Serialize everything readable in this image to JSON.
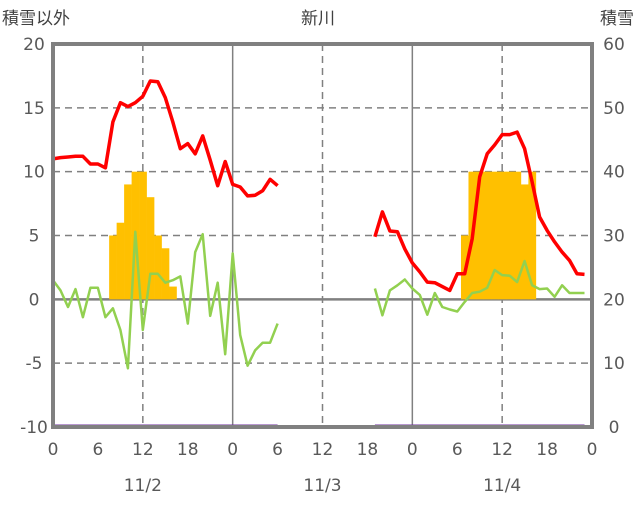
{
  "chart_data": {
    "type": "line",
    "title": "新川",
    "ylabel_left": "積雪以外",
    "ylabel_right": "積雪",
    "ylim_left": [
      -10,
      20
    ],
    "ylim_right": [
      0,
      60
    ],
    "yticks_left": [
      "20",
      "15",
      "10",
      "5",
      "0",
      "-5",
      "-10"
    ],
    "yticks_right": [
      "60",
      "50",
      "40",
      "30",
      "20",
      "10",
      "0"
    ],
    "xlim_hours": [
      0,
      72
    ],
    "xtick_labels": [
      "0",
      "6",
      "12",
      "18",
      "0",
      "6",
      "12",
      "18",
      "0",
      "6",
      "12",
      "18",
      "0"
    ],
    "date_labels": [
      "11/2",
      "11/3",
      "11/4"
    ],
    "grid": true,
    "colors": {
      "red": "#ff0000",
      "green": "#92d050",
      "bars": "#ffc000",
      "snow": "#7030a0",
      "axis": "#808080"
    },
    "series": [
      {
        "name": "red-line",
        "axis": "left",
        "x_start": 0,
        "values": [
          11.0,
          11.1,
          11.15,
          11.2,
          11.2,
          10.6,
          10.6,
          10.3,
          13.9,
          15.4,
          15.1,
          15.4,
          15.9,
          17.1,
          17.05,
          15.8,
          13.9,
          11.8,
          12.2,
          11.4,
          12.8,
          10.9,
          8.9,
          10.8,
          9.0,
          8.8,
          8.1,
          8.15,
          8.5,
          9.4,
          8.9
        ]
      },
      {
        "name": "red-line",
        "axis": "left",
        "x_start": 43,
        "values": [
          4.9,
          6.85,
          5.35,
          5.3,
          3.95,
          2.85,
          2.15,
          1.35,
          1.3,
          1.0,
          0.7,
          2.0,
          2.0,
          4.75,
          9.6,
          11.4,
          12.1,
          12.9,
          12.9,
          13.1,
          11.8,
          9.2,
          6.45,
          5.4,
          4.5,
          3.7,
          3.05,
          2.0,
          1.95
        ]
      },
      {
        "name": "green-line",
        "axis": "left",
        "x_start": 0,
        "values": [
          1.5,
          0.7,
          -0.6,
          0.8,
          -1.4,
          0.9,
          0.9,
          -1.4,
          -0.7,
          -2.4,
          -5.4,
          5.3,
          -2.4,
          2.0,
          2.0,
          1.3,
          1.5,
          1.8,
          -1.9,
          3.7,
          5.1,
          -1.3,
          1.3,
          -4.3,
          3.6,
          -2.8,
          -5.2,
          -4.0,
          -3.4,
          -3.4,
          -1.9
        ]
      },
      {
        "name": "green-line",
        "axis": "left",
        "x_start": 43,
        "values": [
          0.85,
          -1.25,
          0.7,
          1.1,
          1.55,
          0.85,
          0.35,
          -1.2,
          0.5,
          -0.6,
          -0.8,
          -0.95,
          -0.2,
          0.5,
          0.6,
          0.9,
          2.3,
          1.9,
          1.85,
          1.35,
          3.0,
          1.1,
          0.8,
          0.85,
          0.2,
          1.1,
          0.5,
          0.5,
          0.5
        ]
      },
      {
        "name": "bars",
        "axis": "left",
        "x_start": 8,
        "values": [
          5,
          6,
          9,
          10,
          10,
          8,
          5,
          4,
          1
        ]
      },
      {
        "name": "bars",
        "axis": "left",
        "x_start": 55,
        "values": [
          5,
          10,
          10,
          10,
          10,
          10,
          10,
          10,
          9,
          10
        ]
      },
      {
        "name": "snow-depth",
        "axis": "right",
        "segments": [
          [
            0,
            30,
            0
          ],
          [
            43,
            71,
            0
          ]
        ]
      }
    ]
  }
}
